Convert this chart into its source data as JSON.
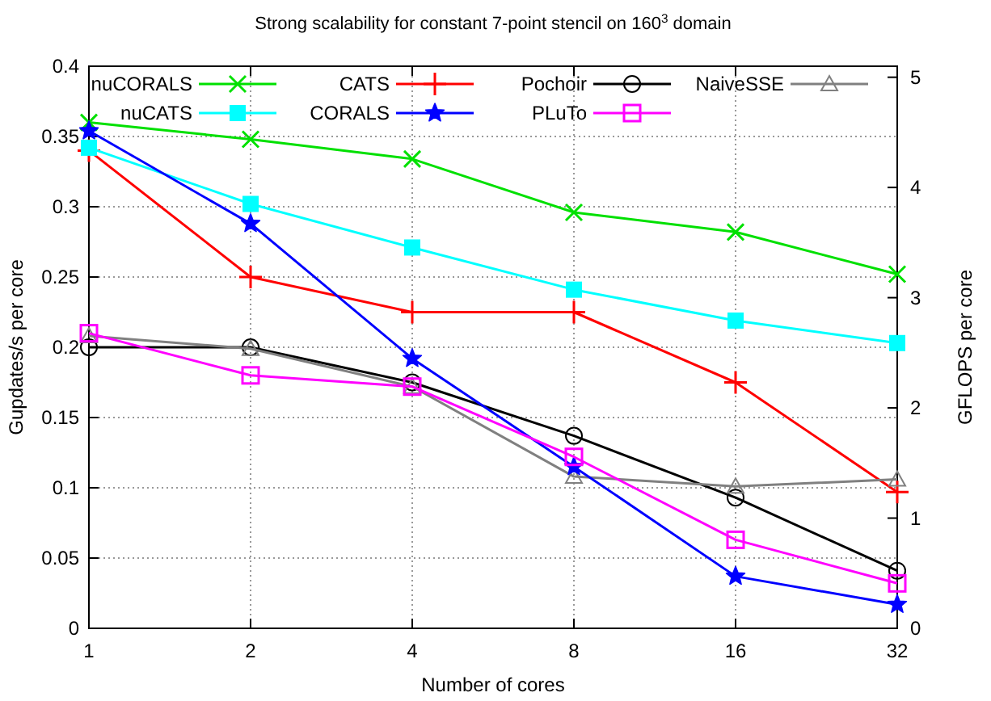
{
  "chart_data": {
    "type": "line",
    "title": "Strong scalability for constant 7-point stencil on 160$^{3}$ domain",
    "xlabel": "Number of cores",
    "ylabel": "Gupdates/s per core",
    "y2label": "GFLOPS per core",
    "x": [
      1,
      2,
      4,
      8,
      16,
      32
    ],
    "log": "x",
    "xlim": [
      1,
      32
    ],
    "xticks": [
      1,
      2,
      4,
      8,
      16,
      32
    ],
    "ylim": [
      0,
      0.4
    ],
    "yticks": [
      0,
      0.05,
      0.1,
      0.15,
      0.2,
      0.25,
      0.3,
      0.35,
      0.4
    ],
    "y2lim": [
      0,
      5.1
    ],
    "y2ticks": [
      0,
      1,
      2,
      3,
      4,
      5
    ],
    "grid": true,
    "legend": "top",
    "line_style": "solid",
    "series": [
      {
        "name": "nuCORALS",
        "color": "#00e000",
        "marker": "cross",
        "values": [
          0.36,
          0.348,
          0.334,
          0.296,
          0.282,
          0.252
        ]
      },
      {
        "name": "CATS",
        "color": "#ff0000",
        "marker": "plus",
        "values": [
          0.34,
          0.25,
          0.225,
          0.225,
          0.175,
          0.097
        ]
      },
      {
        "name": "Pochoir",
        "color": "#000000",
        "marker": "circle",
        "values": [
          0.2,
          0.2,
          0.175,
          0.137,
          0.093,
          0.041
        ]
      },
      {
        "name": "NaiveSSE",
        "color": "#808080",
        "marker": "triangle",
        "values": [
          0.208,
          0.199,
          0.172,
          0.108,
          0.101,
          0.106
        ]
      },
      {
        "name": "nuCATS",
        "color": "#00ffff",
        "marker": "square",
        "values": [
          0.342,
          0.302,
          0.271,
          0.241,
          0.219,
          0.203
        ]
      },
      {
        "name": "CORALS",
        "color": "#0000ff",
        "marker": "star",
        "values": [
          0.354,
          0.288,
          0.192,
          0.115,
          0.037,
          0.017
        ]
      },
      {
        "name": "PLuTo",
        "color": "#ff00ff",
        "marker": "square-open",
        "values": [
          0.21,
          0.18,
          0.172,
          0.122,
          0.063,
          0.032
        ]
      }
    ]
  }
}
